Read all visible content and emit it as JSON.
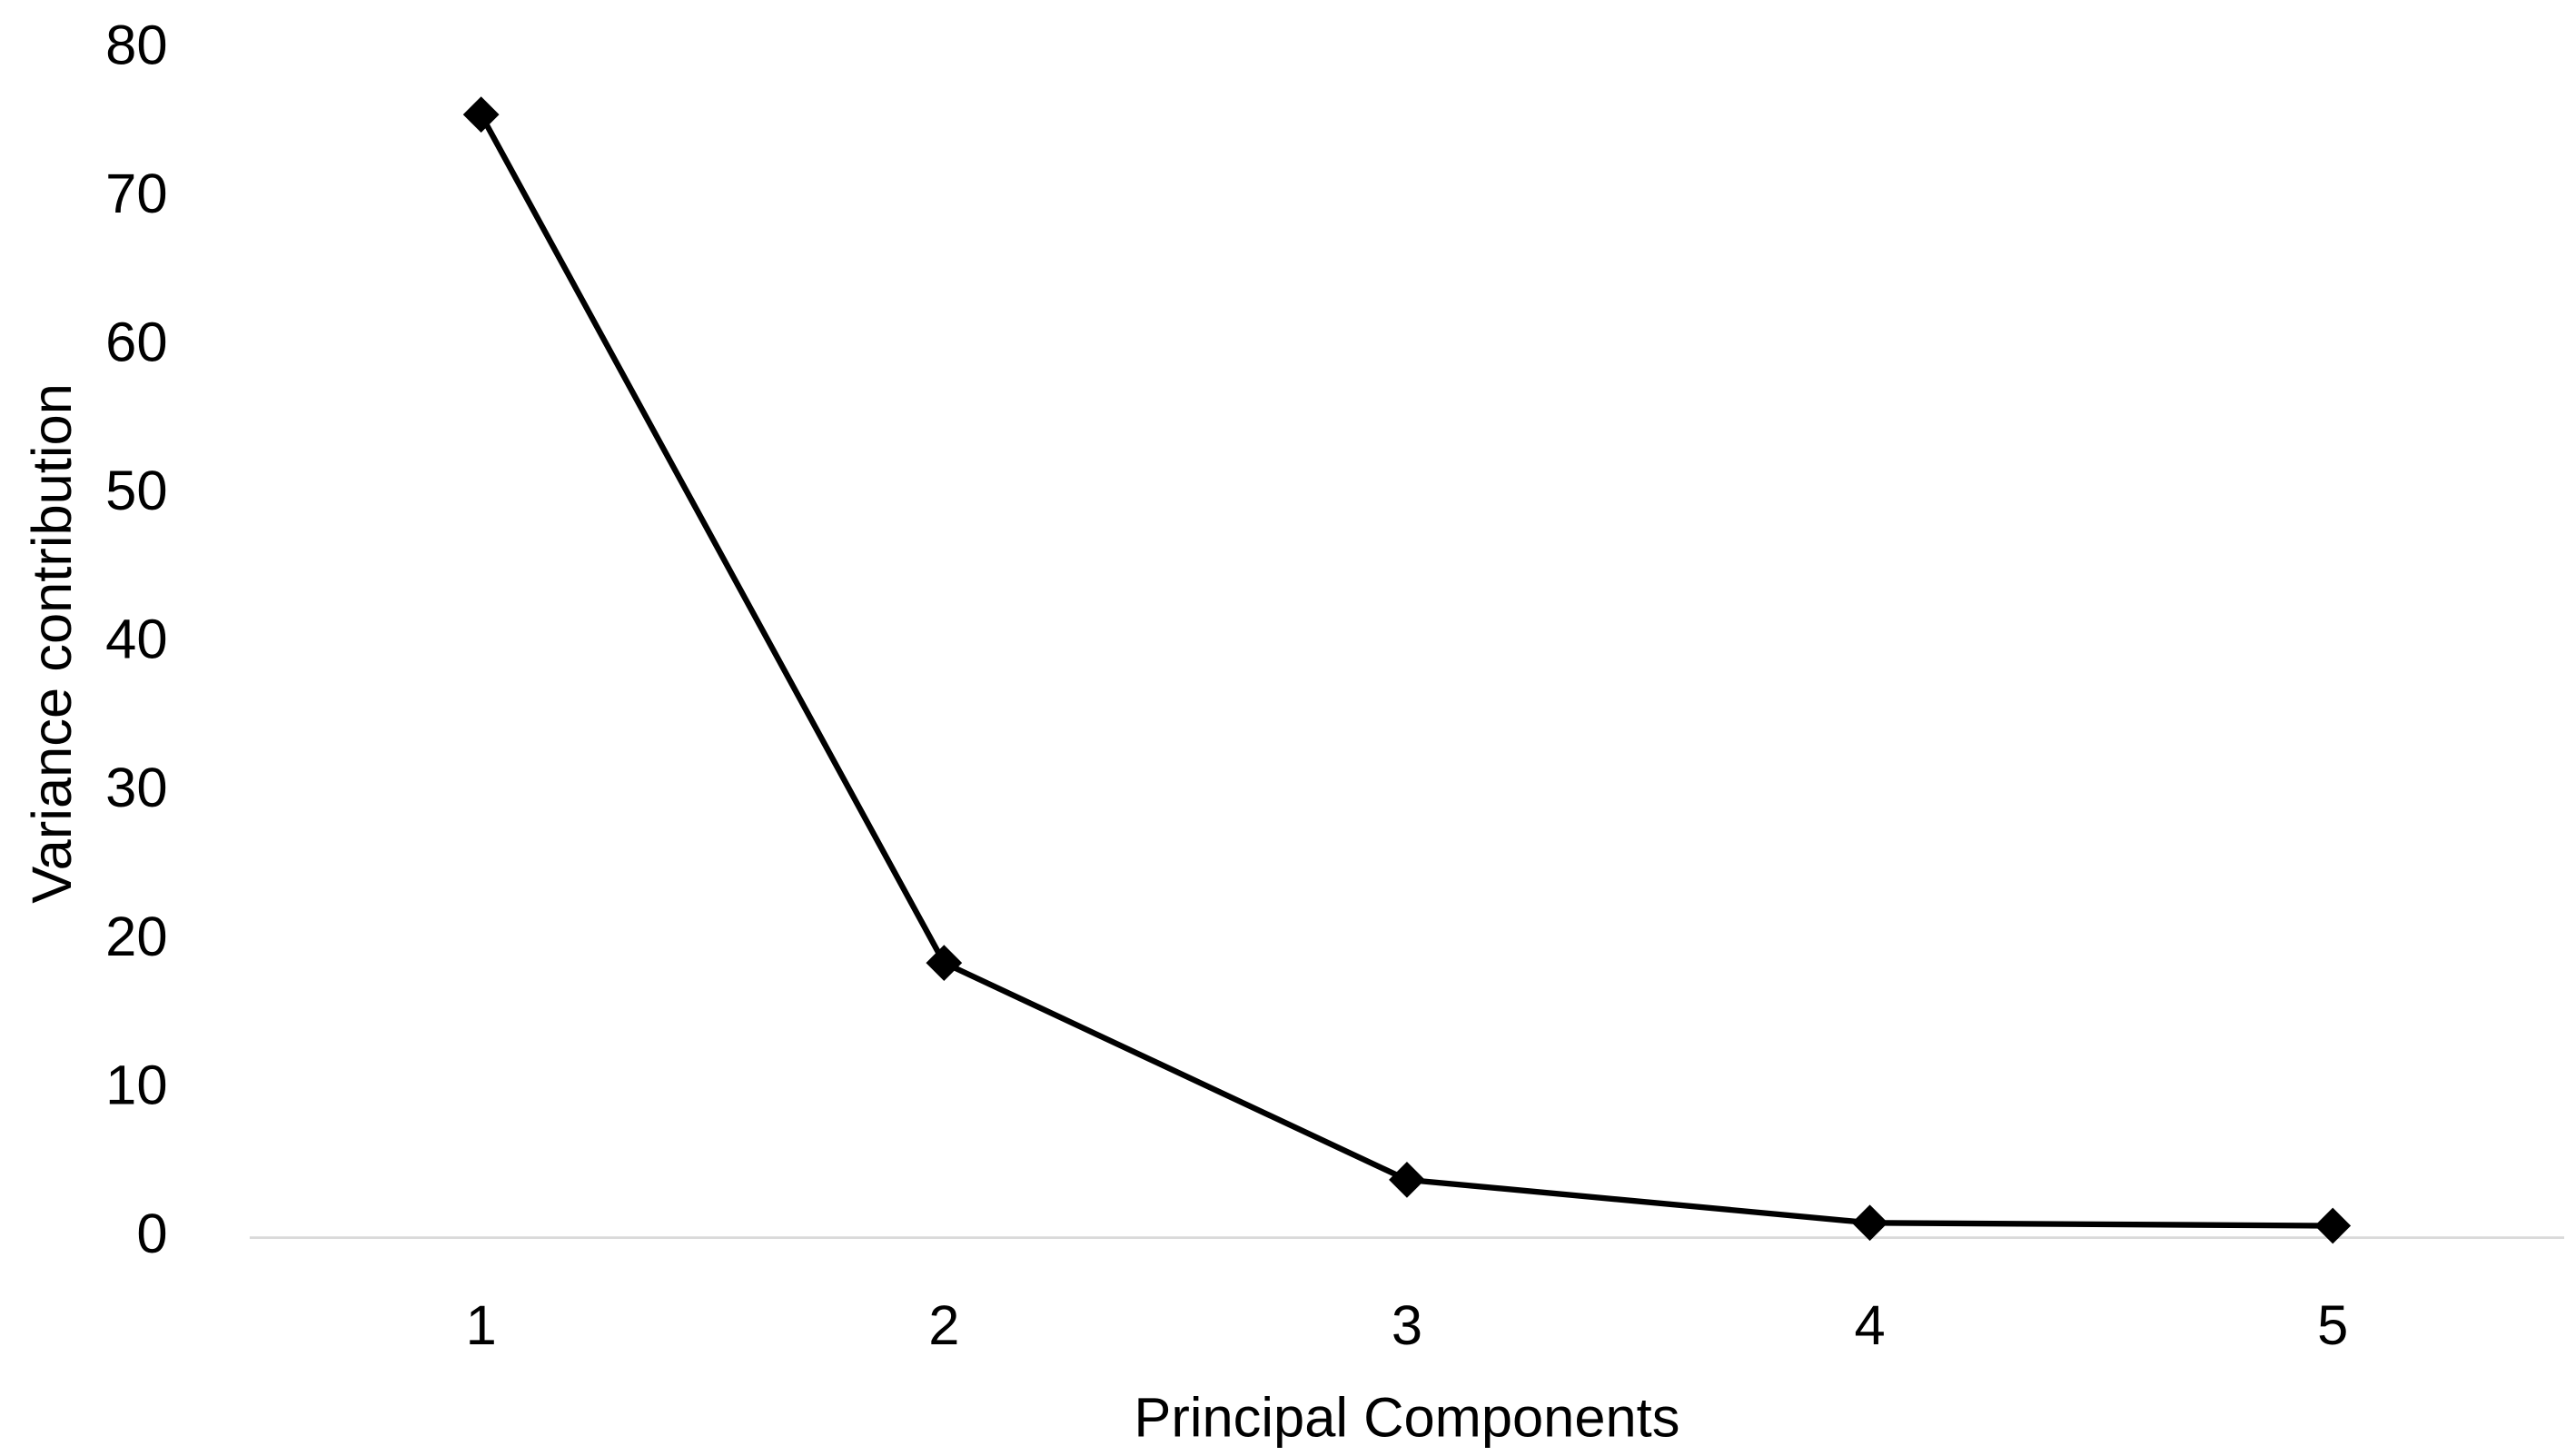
{
  "chart_data": {
    "type": "line",
    "x_label": "Principal Components",
    "y_label": "Variance contribution",
    "categories": [
      "1",
      "2",
      "3",
      "4",
      "5"
    ],
    "series": [
      {
        "name": "Variance contribution",
        "color": "#000000",
        "values": [
          75.6,
          18.5,
          3.9,
          1.0,
          0.8
        ]
      }
    ],
    "ylim": [
      0,
      80
    ],
    "yticks": [
      0,
      10,
      20,
      30,
      40,
      50,
      60,
      70,
      80
    ],
    "grid": false,
    "legend": false,
    "marker": "diamond"
  }
}
